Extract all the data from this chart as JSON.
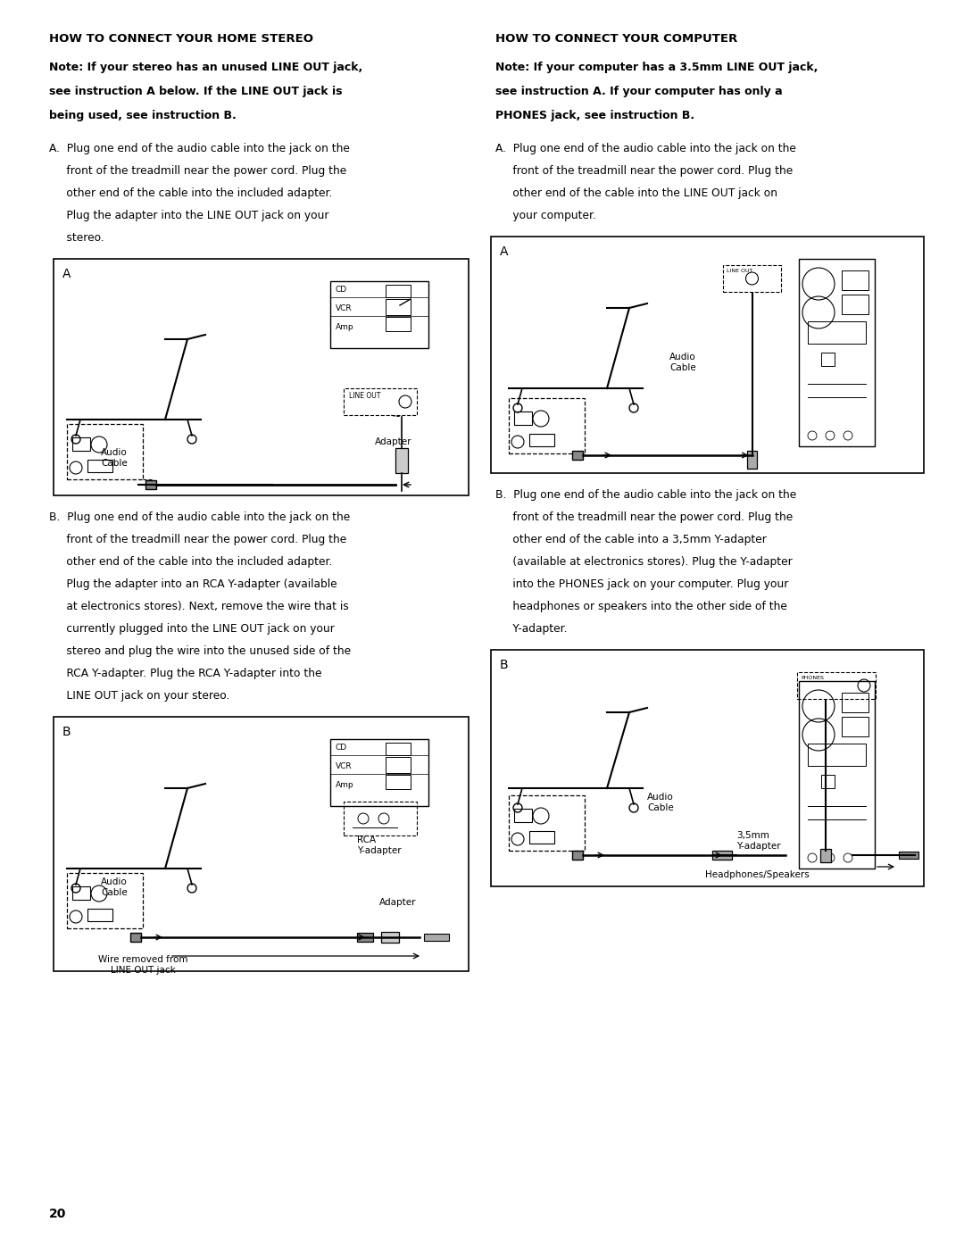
{
  "bg_color": "#ffffff",
  "text_color": "#000000",
  "page_number": "20",
  "left_column": {
    "heading": "HOW TO CONNECT YOUR HOME STEREO",
    "note": "Note: If your stereo has an unused LINE OUT jack,\nsee instruction A below. If the LINE OUT jack is\nbeing used, see instruction B.",
    "instruction_a": "A.  Plug one end of the audio cable into the jack on the\n     front of the treadmill near the power cord. Plug the\n     other end of the cable into the included adapter.\n     Plug the adapter into the LINE OUT jack on your\n     stereo.",
    "instruction_b": "B.  Plug one end of the audio cable into the jack on the\n     front of the treadmill near the power cord. Plug the\n     other end of the cable into the included adapter.\n     Plug the adapter into an RCA Y-adapter (available\n     at electronics stores). Next, remove the wire that is\n     currently plugged into the LINE OUT jack on your\n     stereo and plug the wire into the unused side of the\n     RCA Y-adapter. Plug the RCA Y-adapter into the\n     LINE OUT jack on your stereo."
  },
  "right_column": {
    "heading": "HOW TO CONNECT YOUR COMPUTER",
    "note": "Note: If your computer has a 3.5mm LINE OUT jack,\nsee instruction A. If your computer has only a\nPHONES jack, see instruction B.",
    "instruction_a": "A.  Plug one end of the audio cable into the jack on the\n     front of the treadmill near the power cord. Plug the\n     other end of the cable into the LINE OUT jack on\n     your computer.",
    "instruction_b": "B.  Plug one end of the audio cable into the jack on the\n     front of the treadmill near the power cord. Plug the\n     other end of the cable into a 3,5mm Y-adapter\n     (available at electronics stores). Plug the Y-adapter\n     into the PHONES jack on your computer. Plug your\n     headphones or speakers into the other side of the\n     Y-adapter."
  }
}
